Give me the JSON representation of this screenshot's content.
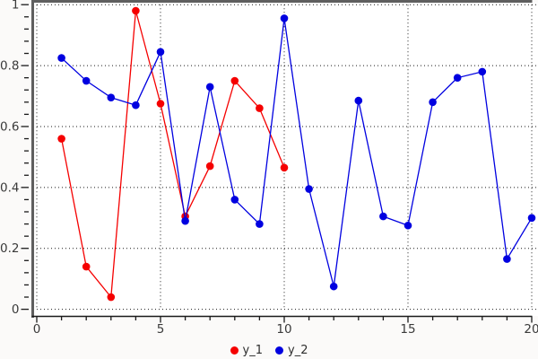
{
  "chart_data": {
    "type": "line",
    "title": "",
    "xlabel": "",
    "ylabel": "",
    "xlim": [
      0,
      20
    ],
    "ylim": [
      0,
      1
    ],
    "x_major_ticks": [
      0,
      5,
      10,
      15,
      20
    ],
    "x_tick_labels": [
      "0",
      "5",
      "10",
      "15",
      "20"
    ],
    "x_minor_step": 1,
    "y_major_ticks": [
      0,
      0.2,
      0.4,
      0.6,
      0.8,
      1
    ],
    "y_tick_labels": [
      "0",
      "0.2",
      "0.4",
      "0.6",
      "0.8",
      "1"
    ],
    "y_minor_step": 0.04,
    "grid": "dotted-major-both",
    "legend_position": "bottom-center",
    "series": [
      {
        "name": "y_1",
        "color": "#f50000",
        "marker": "filled-circle",
        "x": [
          1,
          2,
          3,
          4,
          5,
          6,
          7,
          8,
          9,
          10
        ],
        "y": [
          0.56,
          0.14,
          0.04,
          0.98,
          0.675,
          0.305,
          0.47,
          0.75,
          0.66,
          0.465
        ]
      },
      {
        "name": "y_2",
        "color": "#0000e0",
        "marker": "filled-circle",
        "x": [
          1,
          2,
          3,
          4,
          5,
          6,
          7,
          8,
          9,
          10,
          11,
          12,
          13,
          14,
          15,
          16,
          17,
          18,
          19,
          20
        ],
        "y": [
          0.825,
          0.75,
          0.695,
          0.67,
          0.845,
          0.29,
          0.73,
          0.36,
          0.28,
          0.955,
          0.395,
          0.075,
          0.685,
          0.305,
          0.275,
          0.68,
          0.76,
          0.78,
          0.165,
          0.3
        ]
      }
    ]
  },
  "style_colors": {
    "border_gray": "#5f5f5f",
    "grid_dots": "#1a1a1a",
    "axis_line": "#1a1a1a",
    "tick_label": "#3a3a3a",
    "plot_background": "#ffffff"
  },
  "legend": {
    "items": [
      {
        "label": "y_1",
        "color": "#f50000"
      },
      {
        "label": "y_2",
        "color": "#0000e0"
      }
    ]
  }
}
